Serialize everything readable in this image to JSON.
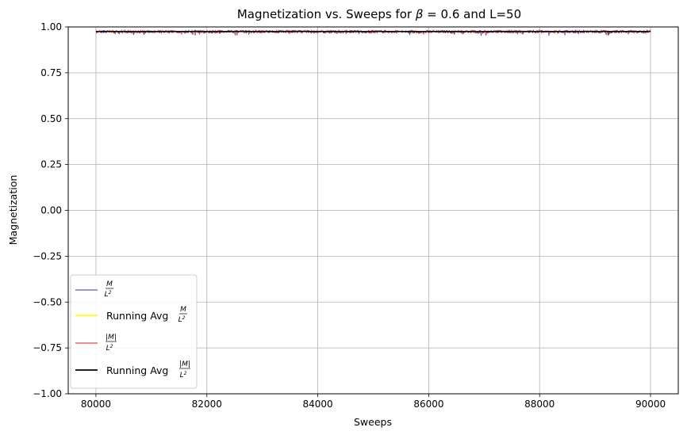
{
  "chart_data": {
    "type": "line",
    "title_prefix": "Magnetization vs. Sweeps for ",
    "title_beta_symbol": "β",
    "title_beta_value": " = 0.6",
    "title_suffix": " and L=50",
    "xlabel": "Sweeps",
    "ylabel": "Magnetization",
    "xlim": [
      79500,
      90500
    ],
    "ylim": [
      -1.0,
      1.0
    ],
    "xticks": [
      80000,
      82000,
      84000,
      86000,
      88000,
      90000
    ],
    "xtick_labels": [
      "80000",
      "82000",
      "84000",
      "86000",
      "88000",
      "90000"
    ],
    "yticks": [
      1.0,
      0.75,
      0.5,
      0.25,
      0.0,
      -0.25,
      -0.5,
      -0.75,
      -1.0
    ],
    "ytick_labels": [
      "1.00",
      "0.75",
      "0.50",
      "0.25",
      "0.00",
      "−0.25",
      "−0.50",
      "−0.75",
      "−1.00"
    ],
    "grid": true,
    "legend_position": "lower-left",
    "series": [
      {
        "key": "m",
        "color": "#3b3b9a",
        "x_range": [
          80000,
          90000
        ],
        "mean": 0.975,
        "noise": 0.008
      },
      {
        "key": "ravg_m",
        "color": "#ffff00",
        "x_range": [
          80000,
          90000
        ],
        "mean": 0.975
      },
      {
        "key": "abs_m",
        "color": "#d62020",
        "x_range": [
          80000,
          90000
        ],
        "mean": 0.975,
        "noise": 0.008
      },
      {
        "key": "ravg_abs_m",
        "color": "#000000",
        "x_range": [
          80000,
          90000
        ],
        "mean": 0.975
      }
    ],
    "legend": {
      "m_num": "M",
      "m_den": "L",
      "m_exp": "2",
      "ravg_prefix": "Running Avg ",
      "abs_num": "|M|"
    }
  }
}
